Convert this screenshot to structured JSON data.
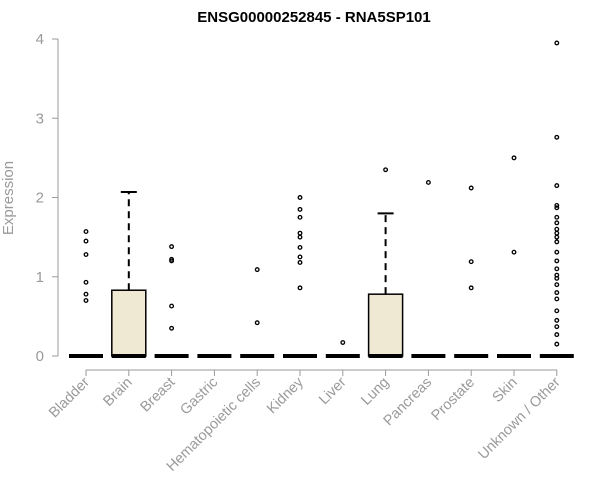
{
  "chart_data": {
    "type": "box",
    "title": "ENSG00000252845 - RNA5SP101",
    "xlabel": "",
    "ylabel": "Expression",
    "ylim": [
      0,
      4
    ],
    "yticks": [
      0,
      1,
      2,
      3,
      4
    ],
    "grid": false,
    "box_fill": "#efe8d2",
    "categories": [
      "Bladder",
      "Brain",
      "Breast",
      "Gastric",
      "Hematopoietic cells",
      "Kidney",
      "Liver",
      "Lung",
      "Pancreas",
      "Prostate",
      "Skin",
      "Unknown / Other"
    ],
    "boxes": [
      {
        "q1": 0,
        "median": 0,
        "q3": 0,
        "whisker_low": 0,
        "whisker_high": 0,
        "outliers": [
          0.7,
          0.78,
          0.93,
          1.28,
          1.45,
          1.57
        ]
      },
      {
        "q1": 0,
        "median": 0,
        "q3": 0.83,
        "whisker_low": 0,
        "whisker_high": 2.07,
        "outliers": []
      },
      {
        "q1": 0,
        "median": 0,
        "q3": 0,
        "whisker_low": 0,
        "whisker_high": 0,
        "outliers": [
          0.35,
          0.63,
          1.2,
          1.22,
          1.38
        ]
      },
      {
        "q1": 0,
        "median": 0,
        "q3": 0,
        "whisker_low": 0,
        "whisker_high": 0,
        "outliers": []
      },
      {
        "q1": 0,
        "median": 0,
        "q3": 0,
        "whisker_low": 0,
        "whisker_high": 0,
        "outliers": [
          0.42,
          1.09
        ]
      },
      {
        "q1": 0,
        "median": 0,
        "q3": 0,
        "whisker_low": 0,
        "whisker_high": 0,
        "outliers": [
          0.86,
          1.18,
          1.25,
          1.37,
          1.5,
          1.55,
          1.75,
          1.85,
          2.0
        ]
      },
      {
        "q1": 0,
        "median": 0,
        "q3": 0,
        "whisker_low": 0,
        "whisker_high": 0,
        "outliers": [
          0.17
        ]
      },
      {
        "q1": 0,
        "median": 0,
        "q3": 0.78,
        "whisker_low": 0,
        "whisker_high": 1.8,
        "outliers": [
          2.35
        ]
      },
      {
        "q1": 0,
        "median": 0,
        "q3": 0,
        "whisker_low": 0,
        "whisker_high": 0,
        "outliers": [
          2.19
        ]
      },
      {
        "q1": 0,
        "median": 0,
        "q3": 0,
        "whisker_low": 0,
        "whisker_high": 0,
        "outliers": [
          0.86,
          1.19,
          2.12
        ]
      },
      {
        "q1": 0,
        "median": 0,
        "q3": 0,
        "whisker_low": 0,
        "whisker_high": 0,
        "outliers": [
          1.31,
          2.5
        ]
      },
      {
        "q1": 0,
        "median": 0,
        "q3": 0,
        "whisker_low": 0,
        "whisker_high": 0,
        "outliers": [
          0.15,
          0.27,
          0.37,
          0.45,
          0.57,
          0.72,
          0.8,
          0.9,
          0.98,
          1.02,
          1.1,
          1.2,
          1.31,
          1.44,
          1.5,
          1.55,
          1.6,
          1.68,
          1.75,
          1.87,
          1.9,
          2.15,
          2.76,
          3.95
        ]
      }
    ]
  }
}
